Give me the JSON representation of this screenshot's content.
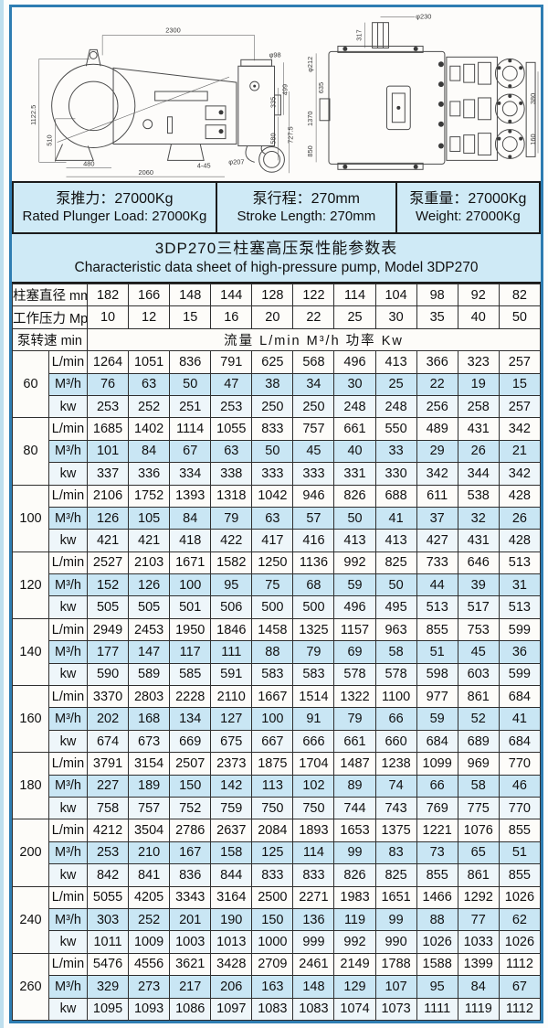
{
  "colors": {
    "frame_blue": "#2e7db2",
    "panel_blue": "#cfeaf6",
    "row_blue": "#c9e6f4",
    "line_dark": "#2f2f2f"
  },
  "drawing": {
    "side_dims": {
      "top_width": "2300",
      "total_height": "1122.5",
      "base_height": "510",
      "base_left": "480",
      "base_total": "2060",
      "bolt_note": "4-45",
      "pipe_dia": "φ207",
      "shaft_dia": "φ98",
      "h1": "499",
      "h2": "335",
      "h3": "580",
      "h4": "727.5"
    },
    "top_dims": {
      "shaft_dia": "φ230",
      "shaft_len": "317",
      "d_left": "φ212",
      "w1": "635",
      "w2": "1370",
      "w3": "850",
      "r1": "380",
      "r2": "160"
    }
  },
  "specs": [
    {
      "cn": "泵推力：27000Kg",
      "en": "Rated Plunger Load: 27000Kg"
    },
    {
      "cn": "泵行程：270mm",
      "en": "Stroke Length: 270mm"
    },
    {
      "cn": "泵重量：27000Kg",
      "en": "Weight: 27000Kg"
    }
  ],
  "title": {
    "cn": "3DP270三柱塞高压泵性能参数表",
    "en": "Characteristic data sheet of high-pressure pump, Model 3DP270"
  },
  "table": {
    "header": {
      "row1_label": "柱塞直径 mm",
      "row1_values": [
        182,
        166,
        148,
        144,
        128,
        122,
        114,
        104,
        98,
        92,
        82
      ],
      "row2_label": "工作压力 Mpa",
      "row2_values": [
        10,
        12,
        15,
        16,
        20,
        22,
        25,
        30,
        35,
        40,
        50
      ],
      "row3_label": "泵转速 min",
      "row3_value": "流量 L/min  M³/h  功率 Kw"
    },
    "unit_labels": [
      "L/min",
      "M³/h",
      "kw"
    ],
    "blocks": [
      {
        "rpm": 60,
        "lmin": [
          1264,
          1051,
          836,
          791,
          625,
          568,
          496,
          413,
          366,
          323,
          257
        ],
        "m3h": [
          76,
          63,
          50,
          47,
          38,
          34,
          30,
          25,
          22,
          19,
          15
        ],
        "kw": [
          253,
          252,
          251,
          253,
          250,
          250,
          248,
          248,
          256,
          258,
          257
        ]
      },
      {
        "rpm": 80,
        "lmin": [
          1685,
          1402,
          1114,
          1055,
          833,
          757,
          661,
          550,
          489,
          431,
          342
        ],
        "m3h": [
          101,
          84,
          67,
          63,
          50,
          45,
          40,
          33,
          29,
          26,
          21
        ],
        "kw": [
          337,
          336,
          334,
          338,
          333,
          333,
          331,
          330,
          342,
          344,
          342
        ]
      },
      {
        "rpm": 100,
        "lmin": [
          2106,
          1752,
          1393,
          1318,
          1042,
          946,
          826,
          688,
          611,
          538,
          428
        ],
        "m3h": [
          126,
          105,
          84,
          79,
          63,
          57,
          50,
          41,
          37,
          32,
          26
        ],
        "kw": [
          421,
          421,
          418,
          422,
          417,
          416,
          413,
          413,
          427,
          431,
          428
        ]
      },
      {
        "rpm": 120,
        "lmin": [
          2527,
          2103,
          1671,
          1582,
          1250,
          1136,
          992,
          825,
          733,
          646,
          513
        ],
        "m3h": [
          152,
          126,
          100,
          95,
          75,
          68,
          59,
          50,
          44,
          39,
          31
        ],
        "kw": [
          505,
          505,
          501,
          506,
          500,
          500,
          496,
          495,
          513,
          517,
          513
        ]
      },
      {
        "rpm": 140,
        "lmin": [
          2949,
          2453,
          1950,
          1846,
          1458,
          1325,
          1157,
          963,
          855,
          753,
          599
        ],
        "m3h": [
          177,
          147,
          117,
          111,
          88,
          79,
          69,
          58,
          51,
          45,
          36
        ],
        "kw": [
          590,
          589,
          585,
          591,
          583,
          583,
          578,
          578,
          598,
          603,
          599
        ]
      },
      {
        "rpm": 160,
        "lmin": [
          3370,
          2803,
          2228,
          2110,
          1667,
          1514,
          1322,
          1100,
          977,
          861,
          684
        ],
        "m3h": [
          202,
          168,
          134,
          127,
          100,
          91,
          79,
          66,
          59,
          52,
          41
        ],
        "kw": [
          674,
          673,
          669,
          675,
          667,
          666,
          661,
          660,
          684,
          689,
          684
        ]
      },
      {
        "rpm": 180,
        "lmin": [
          3791,
          3154,
          2507,
          2373,
          1875,
          1704,
          1487,
          1238,
          1099,
          969,
          770
        ],
        "m3h": [
          227,
          189,
          150,
          142,
          113,
          102,
          89,
          74,
          66,
          58,
          46
        ],
        "kw": [
          758,
          757,
          752,
          759,
          750,
          750,
          744,
          743,
          769,
          775,
          770
        ]
      },
      {
        "rpm": 200,
        "lmin": [
          4212,
          3504,
          2786,
          2637,
          2084,
          1893,
          1653,
          1375,
          1221,
          1076,
          855
        ],
        "m3h": [
          253,
          210,
          167,
          158,
          125,
          114,
          99,
          83,
          73,
          65,
          51
        ],
        "kw": [
          842,
          841,
          836,
          844,
          833,
          833,
          826,
          825,
          855,
          861,
          855
        ]
      },
      {
        "rpm": 240,
        "lmin": [
          5055,
          4205,
          3343,
          3164,
          2500,
          2271,
          1983,
          1651,
          1466,
          1292,
          1026
        ],
        "m3h": [
          303,
          252,
          201,
          190,
          150,
          136,
          119,
          99,
          88,
          77,
          62
        ],
        "kw": [
          1011,
          1009,
          1003,
          1013,
          1000,
          999,
          992,
          990,
          1026,
          1033,
          1026
        ]
      },
      {
        "rpm": 260,
        "lmin": [
          5476,
          4556,
          3621,
          3428,
          2709,
          2461,
          2149,
          1788,
          1588,
          1399,
          1112
        ],
        "m3h": [
          329,
          273,
          217,
          206,
          163,
          148,
          129,
          107,
          95,
          84,
          67
        ],
        "kw": [
          1095,
          1093,
          1086,
          1097,
          1083,
          1083,
          1074,
          1073,
          1111,
          1119,
          1112
        ]
      }
    ]
  }
}
